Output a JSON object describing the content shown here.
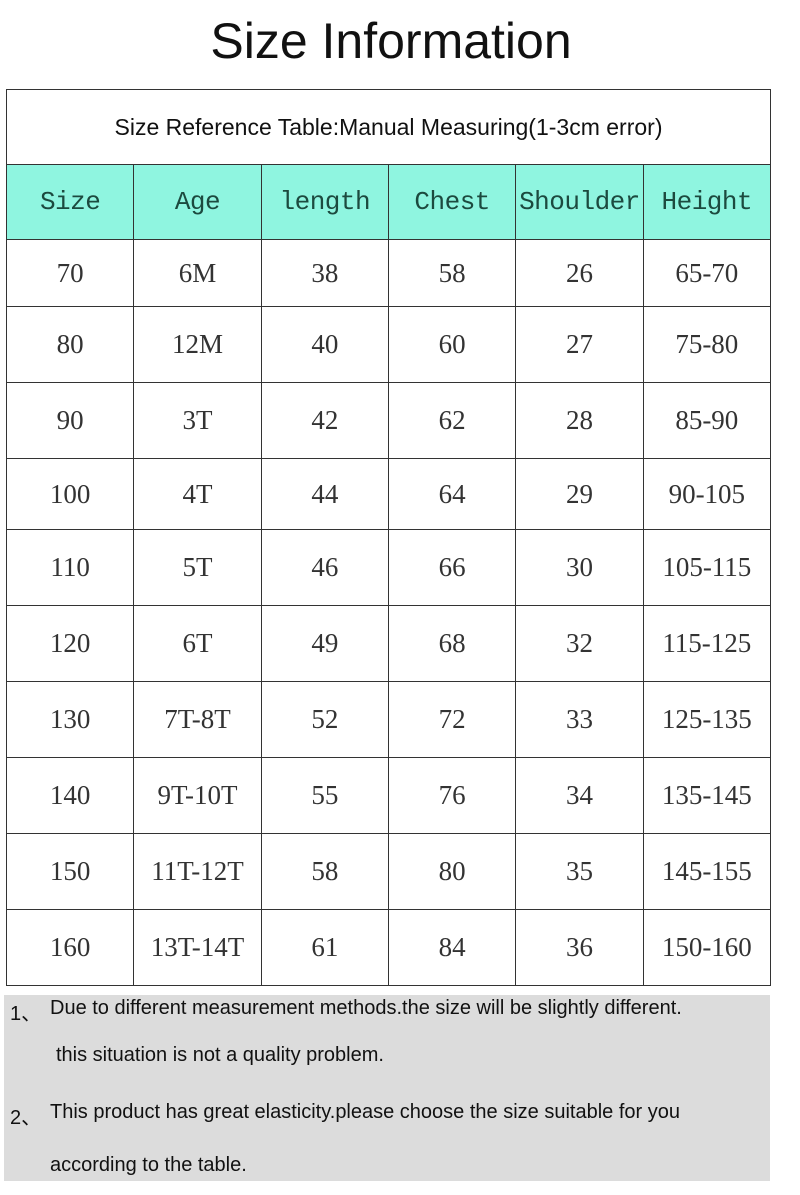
{
  "title": "Size Information",
  "table": {
    "caption": "Size Reference Table:Manual Measuring(1-3cm error)",
    "header_color": "#8ff5e0",
    "columns": [
      "Size",
      "Age",
      "length",
      "Chest",
      "Shoulder",
      "Height"
    ],
    "rows": [
      [
        "70",
        "6M",
        "38",
        "58",
        "26",
        "65-70"
      ],
      [
        "80",
        "12M",
        "40",
        "60",
        "27",
        "75-80"
      ],
      [
        "90",
        "3T",
        "42",
        "62",
        "28",
        "85-90"
      ],
      [
        "100",
        "4T",
        "44",
        "64",
        "29",
        "90-105"
      ],
      [
        "110",
        "5T",
        "46",
        "66",
        "30",
        "105-115"
      ],
      [
        "120",
        "6T",
        "49",
        "68",
        "32",
        "115-125"
      ],
      [
        "130",
        "7T-8T",
        "52",
        "72",
        "33",
        "125-135"
      ],
      [
        "140",
        "9T-10T",
        "55",
        "76",
        "34",
        "135-145"
      ],
      [
        "150",
        "11T-12T",
        "58",
        "80",
        "35",
        "145-155"
      ],
      [
        "160",
        "13T-14T",
        "61",
        "84",
        "36",
        "150-160"
      ]
    ]
  },
  "notes": [
    {
      "marker": "1、",
      "line1": "Due to different measurement methods.the size will be slightly different.",
      "line2": "this situation is not a quality problem."
    },
    {
      "marker": "2、",
      "line1": "This product has great elasticity.please choose the size suitable for you",
      "line2": "according to the table."
    }
  ]
}
